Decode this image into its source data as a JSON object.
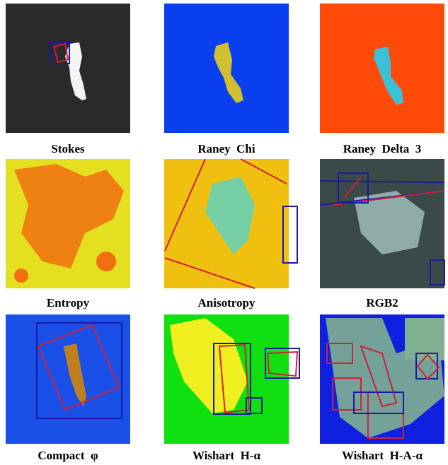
{
  "panels": [
    {
      "caption": "Stokes"
    },
    {
      "caption": "Raney  Chi"
    },
    {
      "caption": "Raney  Delta  3"
    },
    {
      "caption": "Entropy"
    },
    {
      "caption": "Anisotropy"
    },
    {
      "caption": "RGB2"
    },
    {
      "caption": "Compact  φ"
    },
    {
      "caption": "Wishart  H-α"
    },
    {
      "caption": "Wishart  H-A-α"
    }
  ]
}
